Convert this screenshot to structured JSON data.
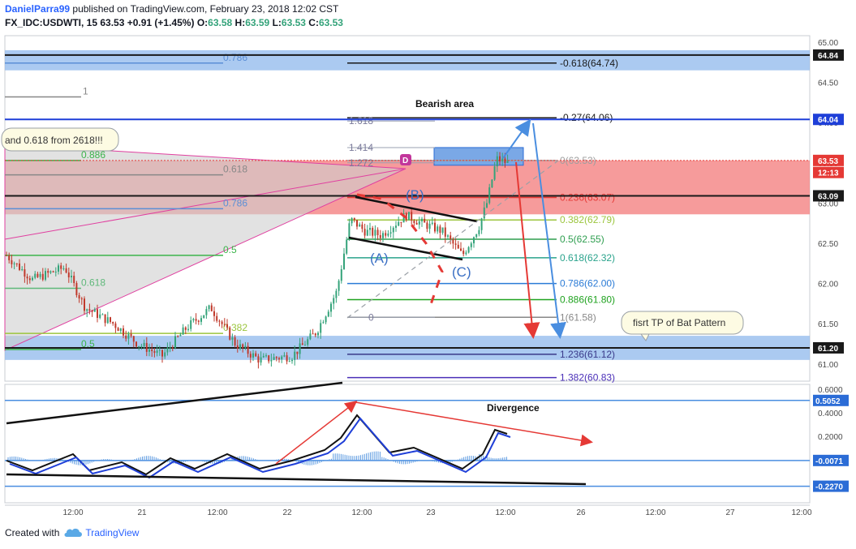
{
  "header": {
    "author": "DanielParra99",
    "published": "published on TradingView.com, February 23, 2018 12:02 CST",
    "symbol": "FX_IDC:USDWTI, 15",
    "last": "63.53",
    "change": "+0.91 (+1.45%)",
    "o_label": "O:",
    "o": "63.58",
    "h_label": "H:",
    "h": "63.59",
    "l_label": "L:",
    "l": "63.53",
    "c_label": "C:",
    "c": "63.53"
  },
  "footer": {
    "created_with": "Created with",
    "brand": "TradingView"
  },
  "colors": {
    "up": "#34a37a",
    "down": "#c0392b",
    "blue_zone": "#6fa8dc",
    "red_zone": "#f27777",
    "tag_blue": "#1e3fd8",
    "tag_red": "#e53935",
    "tag_dark": "#1a1a1a"
  },
  "chart_data": [
    {
      "type": "candlestick",
      "symbol": "FX_IDC:USDWTI",
      "interval": "15",
      "price_axis_ticks": [
        "65.00",
        "64.50",
        "64.00",
        "63.50",
        "63.00",
        "62.50",
        "62.00",
        "61.50",
        "61.00"
      ],
      "time_axis_ticks": [
        "12:00",
        "21",
        "12:00",
        "22",
        "12:00",
        "23",
        "12:00",
        "26",
        "12:00",
        "27",
        "12:00"
      ],
      "price_tags": [
        {
          "label": "64.84",
          "value": 64.84,
          "color": "#1a1a1a"
        },
        {
          "label": "64.04",
          "value": 64.04,
          "color": "#1e3fd8"
        },
        {
          "label": "63.53",
          "value": 63.53,
          "color": "#e53935"
        },
        {
          "label": "12:13",
          "value": 63.38,
          "color": "#e53935"
        },
        {
          "label": "63.09",
          "value": 63.09,
          "color": "#1a1a1a"
        },
        {
          "label": "61.20",
          "value": 61.2,
          "color": "#1a1a1a"
        }
      ],
      "fib_right_levels": [
        {
          "label": "-0.618(64.74)",
          "value": 64.74,
          "color": "#1a1a1a"
        },
        {
          "label": "-0.27(64.06)",
          "value": 64.06,
          "color": "#1a1a1a"
        },
        {
          "label": "0(63.53)",
          "value": 63.53,
          "color": "#9e9e9e"
        },
        {
          "label": "0.236(63.07)",
          "value": 63.07,
          "color": "#e53935"
        },
        {
          "label": "0.382(62.79)",
          "value": 62.79,
          "color": "#9bc53d"
        },
        {
          "label": "0.5(62.55)",
          "value": 62.55,
          "color": "#2e9e4f"
        },
        {
          "label": "0.618(62.32)",
          "value": 62.32,
          "color": "#2aa38c"
        },
        {
          "label": "0.786(62.00)",
          "value": 62.0,
          "color": "#2b7bd6"
        },
        {
          "label": "0.886(61.80)",
          "value": 61.8,
          "color": "#1fa21f"
        },
        {
          "label": "1(61.58)",
          "value": 61.58,
          "color": "#888888"
        },
        {
          "label": "1.236(61.12)",
          "value": 61.12,
          "color": "#3a3a8a"
        },
        {
          "label": "1.382(60.83)",
          "value": 60.83,
          "color": "#4a2fb8"
        }
      ],
      "fib_mid_labels": [
        {
          "label": "1.618",
          "value": 64.02
        },
        {
          "label": "1.414",
          "value": 63.69
        },
        {
          "label": "1.272",
          "value": 63.5
        },
        {
          "label": "0",
          "value": 61.58
        }
      ],
      "fib_left_labels": [
        {
          "label": "0.786",
          "value": 64.74,
          "color": "#5b8fd6"
        },
        {
          "label": "1",
          "value": 64.32,
          "color": "#888888"
        },
        {
          "label": "0.886",
          "value": 63.53,
          "color": "#3cb44b"
        },
        {
          "label": "0.618",
          "value": 63.35,
          "color": "#888888"
        },
        {
          "label": "0.786",
          "value": 62.93,
          "color": "#5b8fd6"
        },
        {
          "label": "0.5",
          "value": 62.35,
          "color": "#3cb44b"
        },
        {
          "label": "0.618",
          "value": 61.94,
          "color": "#5fb87a"
        },
        {
          "label": "0.382",
          "value": 61.38,
          "color": "#9bc53d"
        },
        {
          "label": "0.5",
          "value": 61.18,
          "color": "#3cb44b"
        }
      ],
      "zones": [
        {
          "kind": "blue",
          "from": 64.65,
          "to": 64.9
        },
        {
          "kind": "red",
          "from": 62.86,
          "to": 63.53
        },
        {
          "kind": "blue",
          "from": 61.05,
          "to": 61.35
        }
      ],
      "annotations": {
        "bearish_area": "Bearish area",
        "callout_top": "and 0.618 from 2618!!!",
        "callout_tp": "fisrt TP of Bat Pattern",
        "point_d": "D",
        "wave_a": "(A)",
        "wave_b": "(B)",
        "wave_c": "(C)"
      }
    },
    {
      "type": "line",
      "title": "Divergence",
      "axis_ticks": [
        "0.6000",
        "0.4000",
        "0.2000"
      ],
      "tags": [
        {
          "label": "0.5052",
          "value": 0.5052
        },
        {
          "label": "-0.0071",
          "value": -0.0071
        },
        {
          "label": "-0.2270",
          "value": -0.227
        }
      ]
    }
  ]
}
